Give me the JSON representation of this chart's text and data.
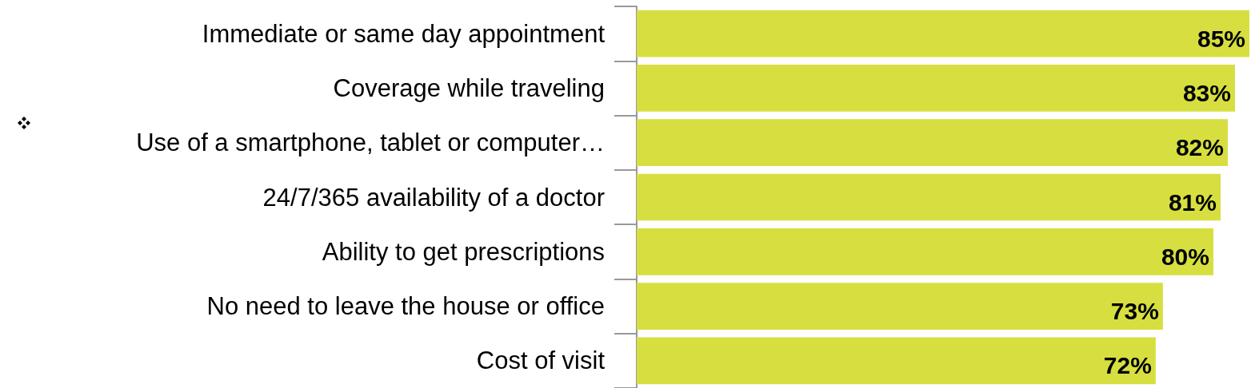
{
  "chart_data": {
    "type": "bar",
    "orientation": "horizontal",
    "categories": [
      "Immediate or same day appointment",
      "Coverage while traveling",
      "Use of a smartphone, tablet or computer…",
      "24/7/365 availability of a doctor",
      "Ability to get prescriptions",
      "No need to leave the house or office",
      "Cost of visit"
    ],
    "series": [
      {
        "color": "#d6df3f",
        "values": [
          85,
          83,
          82,
          81,
          80,
          73,
          72
        ],
        "value_labels": [
          "85%",
          "83%",
          "82%",
          "81%",
          "80%",
          "73%",
          "72%"
        ]
      }
    ],
    "grid": false
  }
}
